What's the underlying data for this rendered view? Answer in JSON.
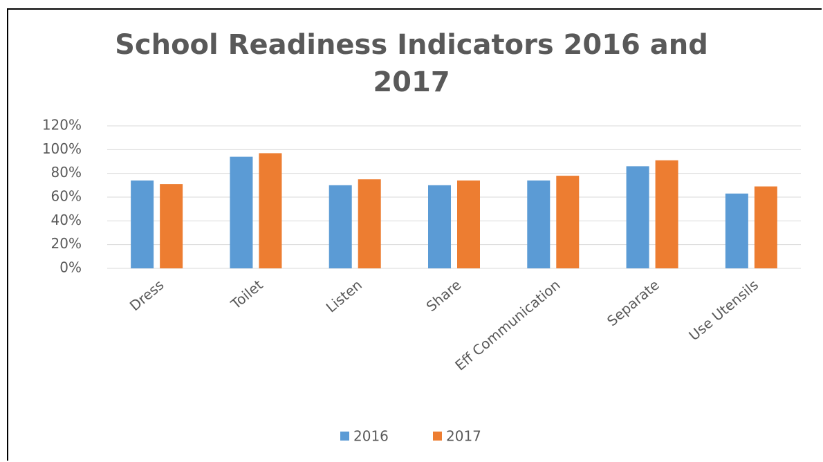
{
  "chart_data": {
    "type": "bar",
    "title": "School Readiness Indicators 2016 and 2017",
    "categories": [
      "Dress",
      "Toilet",
      "Listen",
      "Share",
      "Eff Communication",
      "Separate",
      "Use Utensils"
    ],
    "series": [
      {
        "name": "2016",
        "color": "#5b9bd5",
        "values": [
          74,
          94,
          70,
          70,
          74,
          86,
          63
        ]
      },
      {
        "name": "2017",
        "color": "#ed7d31",
        "values": [
          71,
          97,
          75,
          74,
          78,
          91,
          69
        ]
      }
    ],
    "ylim": [
      0,
      120
    ],
    "yticks": [
      {
        "value": 0,
        "label": "0%"
      },
      {
        "value": 20,
        "label": "20%"
      },
      {
        "value": 40,
        "label": "40%"
      },
      {
        "value": 60,
        "label": "60%"
      },
      {
        "value": 80,
        "label": "80%"
      },
      {
        "value": 100,
        "label": "100%"
      },
      {
        "value": 120,
        "label": "120%"
      }
    ],
    "grid": true,
    "legend": "bottom"
  }
}
